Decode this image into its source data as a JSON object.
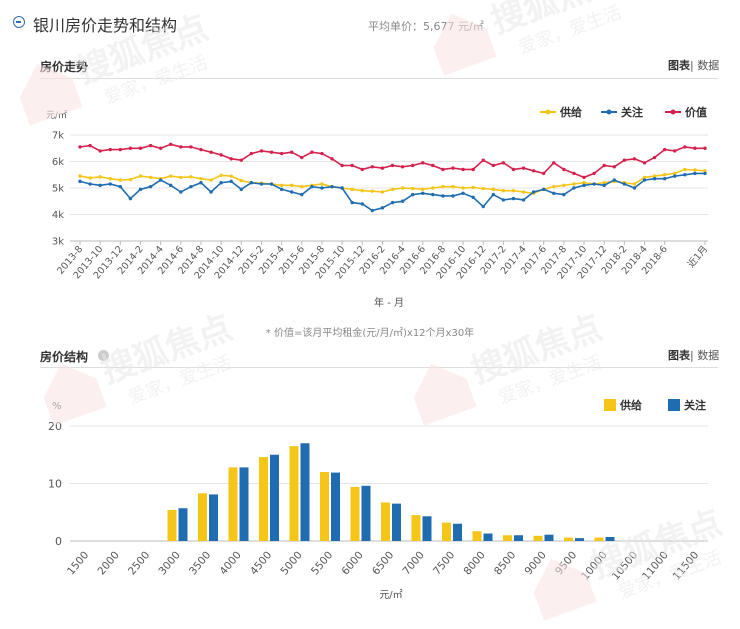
{
  "header": {
    "title": "银川房价走势和结构",
    "avg_price": "平均单价：5,677 元/㎡"
  },
  "trend": {
    "section_title": "房价走势",
    "link_chart": "图表",
    "link_sep": "|",
    "link_data": "数据"
  },
  "structure": {
    "section_title": "房价结构",
    "link_chart": "图表",
    "link_sep": "|",
    "link_data": "数据"
  },
  "footnote": "* 价值=该月平均租金(元/月/㎡)x12个月x30年",
  "watermark": {
    "brand": "搜狐焦点",
    "slogan": "爱家，爱生活",
    "colors": {
      "text": "#e8e8e8",
      "logo": "#fbe3e3"
    }
  },
  "chart_data": [
    {
      "type": "line",
      "ylabel": "元/㎡",
      "xlabel": "年 - 月",
      "ylim": [
        3000,
        7000
      ],
      "y_ticks": [
        3000,
        4000,
        5000,
        6000,
        7000
      ],
      "y_tick_labels": [
        "3k",
        "4k",
        "5k",
        "6k",
        "7k"
      ],
      "grid": true,
      "legend_position": "top-right",
      "x": [
        "2013-8",
        "2013-9",
        "2013-10",
        "2013-11",
        "2013-12",
        "2014-1",
        "2014-2",
        "2014-3",
        "2014-4",
        "2014-5",
        "2014-6",
        "2014-7",
        "2014-8",
        "2014-9",
        "2014-10",
        "2014-11",
        "2014-12",
        "2015-1",
        "2015-2",
        "2015-3",
        "2015-4",
        "2015-5",
        "2015-6",
        "2015-7",
        "2015-8",
        "2015-9",
        "2015-10",
        "2015-11",
        "2015-12",
        "2016-1",
        "2016-2",
        "2016-3",
        "2016-4",
        "2016-5",
        "2016-6",
        "2016-7",
        "2016-8",
        "2016-9",
        "2016-10",
        "2016-11",
        "2016-12",
        "2017-1",
        "2017-2",
        "2017-3",
        "2017-4",
        "2017-5",
        "2017-6",
        "2017-7",
        "2017-8",
        "2017-9",
        "2017-10",
        "2017-11",
        "2017-12",
        "2018-1",
        "2018-2",
        "2018-3",
        "2018-4",
        "2018-5",
        "2018-6",
        "2018-7",
        "2018-8",
        "2018-9",
        "近1月"
      ],
      "x_tick_labels": [
        "2013-8",
        "2013-10",
        "2013-12",
        "2014-2",
        "2014-4",
        "2014-6",
        "2014-8",
        "2014-10",
        "2014-12",
        "2015-2",
        "2015-4",
        "2015-6",
        "2015-8",
        "2015-10",
        "2015-12",
        "2016-2",
        "2016-4",
        "2016-6",
        "2016-8",
        "2016-10",
        "2016-12",
        "2017-2",
        "2017-4",
        "2017-6",
        "2017-8",
        "2017-10",
        "2017-12",
        "2018-2",
        "2018-4",
        "2018-6",
        "近1月"
      ],
      "series": [
        {
          "name": "供给",
          "color": "#f5c518",
          "values": [
            5450,
            5380,
            5420,
            5350,
            5300,
            5320,
            5450,
            5400,
            5350,
            5450,
            5400,
            5420,
            5350,
            5300,
            5480,
            5450,
            5280,
            5200,
            5180,
            5150,
            5100,
            5100,
            5050,
            5100,
            5150,
            5050,
            5000,
            4950,
            4900,
            4880,
            4850,
            4950,
            5000,
            4980,
            4950,
            5000,
            5050,
            5050,
            5000,
            5020,
            4980,
            4950,
            4900,
            4900,
            4850,
            4800,
            4950,
            5050,
            5100,
            5150,
            5200,
            5150,
            5200,
            5250,
            5200,
            5150,
            5400,
            5450,
            5500,
            5550,
            5700,
            5680,
            5650
          ]
        },
        {
          "name": "关注",
          "color": "#1f6cb0",
          "values": [
            5250,
            5150,
            5100,
            5150,
            5050,
            4600,
            4950,
            5050,
            5300,
            5100,
            4850,
            5050,
            5200,
            4850,
            5200,
            5250,
            4950,
            5200,
            5150,
            5150,
            4950,
            4850,
            4750,
            5050,
            5000,
            5050,
            5000,
            4450,
            4400,
            4150,
            4250,
            4450,
            4500,
            4750,
            4800,
            4750,
            4700,
            4700,
            4800,
            4650,
            4300,
            4750,
            4550,
            4600,
            4550,
            4850,
            4950,
            4800,
            4750,
            5000,
            5100,
            5150,
            5100,
            5300,
            5150,
            5000,
            5300,
            5350,
            5350,
            5450,
            5500,
            5550,
            5550
          ]
        },
        {
          "name": "价值",
          "color": "#d6204e",
          "values": [
            6550,
            6600,
            6400,
            6450,
            6450,
            6500,
            6500,
            6600,
            6500,
            6650,
            6550,
            6550,
            6450,
            6350,
            6250,
            6100,
            6050,
            6300,
            6400,
            6350,
            6300,
            6350,
            6150,
            6350,
            6300,
            6100,
            5850,
            5850,
            5700,
            5800,
            5750,
            5850,
            5800,
            5850,
            5950,
            5850,
            5700,
            5750,
            5700,
            5700,
            6050,
            5850,
            5950,
            5700,
            5750,
            5650,
            5550,
            5950,
            5700,
            5550,
            5400,
            5550,
            5850,
            5800,
            6050,
            6100,
            5950,
            6150,
            6450,
            6400,
            6550,
            6500,
            6500
          ]
        }
      ]
    },
    {
      "type": "bar",
      "ylabel": "%",
      "xlabel": "元/㎡",
      "ylim": [
        0,
        20
      ],
      "y_ticks": [
        0,
        10,
        20
      ],
      "grid": true,
      "legend_position": "top-right",
      "categories": [
        "1500",
        "2000",
        "2500",
        "3000",
        "3500",
        "4000",
        "4500",
        "5000",
        "5500",
        "6000",
        "6500",
        "7000",
        "7500",
        "8000",
        "8500",
        "9000",
        "9500",
        "10000",
        "10500",
        "11000",
        "11500"
      ],
      "series": [
        {
          "name": "供给",
          "color": "#f5c518",
          "values": [
            0,
            0,
            0,
            5.4,
            8.3,
            12.8,
            14.6,
            16.5,
            12.0,
            9.4,
            6.7,
            4.5,
            3.2,
            1.7,
            1.0,
            0.9,
            0.6,
            0.6,
            0,
            0,
            0
          ]
        },
        {
          "name": "关注",
          "color": "#1f6cb0",
          "values": [
            0,
            0,
            0,
            5.7,
            8.1,
            12.8,
            15.0,
            17.0,
            11.9,
            9.6,
            6.5,
            4.3,
            3.0,
            1.3,
            1.0,
            1.1,
            0.5,
            0.7,
            0,
            0,
            0
          ]
        }
      ]
    }
  ]
}
